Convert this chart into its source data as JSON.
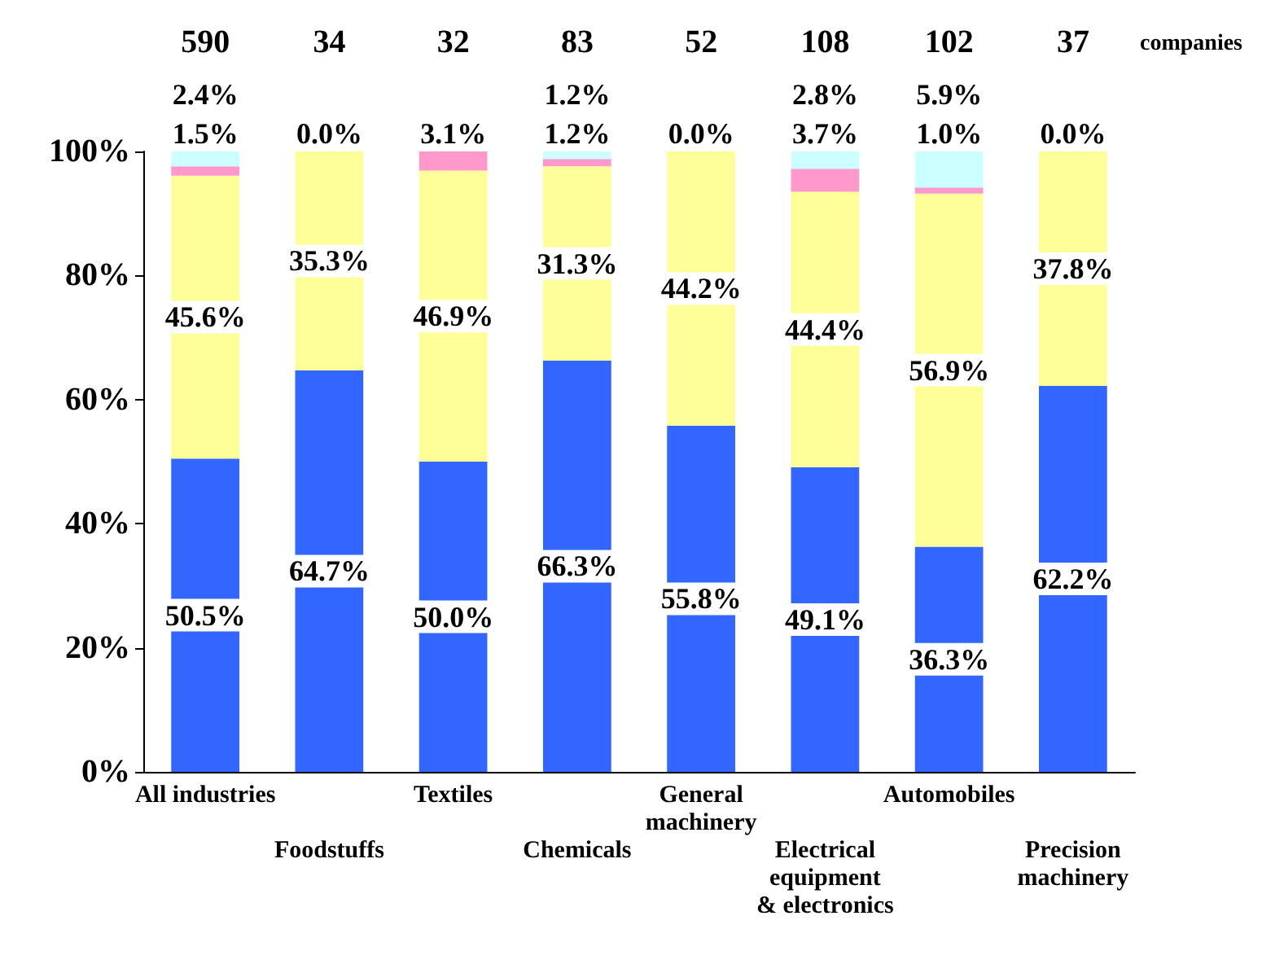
{
  "chart_data": {
    "type": "bar",
    "stacked": true,
    "categories": [
      "All industries",
      "Foodstuffs",
      "Textiles",
      "Chemicals",
      "General\nmachinery",
      "Electrical\nequipment\n& electronics",
      "Automobiles",
      "Precision\nmachinery"
    ],
    "series": [
      {
        "color": "#3366ff",
        "values": [
          50.5,
          64.7,
          50.0,
          66.3,
          55.8,
          49.1,
          36.3,
          62.2
        ],
        "value_labels": [
          "50.5%",
          "64.7%",
          "50.0%",
          "66.3%",
          "55.8%",
          "49.1%",
          "36.3%",
          "62.2%"
        ]
      },
      {
        "color": "#ffff99",
        "values": [
          45.6,
          35.3,
          46.9,
          31.3,
          44.2,
          44.4,
          56.9,
          37.8
        ],
        "value_labels": [
          "45.6%",
          "35.3%",
          "46.9%",
          "31.3%",
          "44.2%",
          "44.4%",
          "56.9%",
          "37.8%"
        ]
      },
      {
        "color": "#ff99cc",
        "values": [
          1.5,
          0.0,
          3.1,
          1.2,
          0.0,
          3.7,
          1.0,
          0.0
        ],
        "value_labels": [
          "1.5%",
          "0.0%",
          "3.1%",
          "1.2%",
          "0.0%",
          "3.7%",
          "1.0%",
          "0.0%"
        ]
      },
      {
        "color": "#ccffff",
        "values": [
          2.4,
          0,
          0,
          1.2,
          0,
          2.8,
          5.9,
          0
        ],
        "value_labels": [
          "2.4%",
          null,
          null,
          "1.2%",
          null,
          "2.8%",
          "5.9%",
          null
        ]
      }
    ],
    "annotations": [
      "590",
      "34",
      "32",
      "83",
      "52",
      "108",
      "102",
      "37",
      "companies"
    ],
    "grid": false,
    "ylim": [
      0,
      100
    ],
    "yticks": [
      {
        "value": 0,
        "label": "0%"
      },
      {
        "value": 20,
        "label": "20%"
      },
      {
        "value": 40,
        "label": "40%"
      },
      {
        "value": 60,
        "label": "60%"
      },
      {
        "value": 80,
        "label": "80%"
      },
      {
        "value": 100,
        "label": "100%"
      }
    ]
  }
}
